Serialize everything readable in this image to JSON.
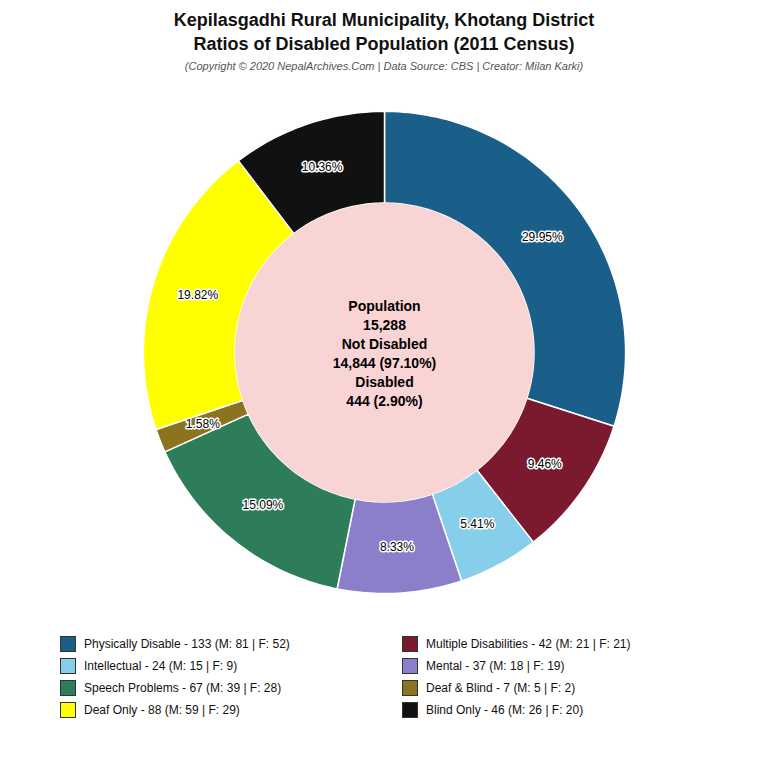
{
  "chart_data": {
    "type": "donut",
    "title": [
      "Kepilasgadhi Rural Municipality, Khotang District",
      "Ratios of Disabled Population (2011 Census)"
    ],
    "subtitle": "(Copyright © 2020 NepalArchives.Com | Data Source: CBS | Creator: Milan Karki)",
    "categories": [
      "Physically Disable - 133 (M: 81 | F: 52)",
      "Multiple Disabilities - 42 (M: 21 | F: 21)",
      "Intellectual - 24 (M: 15 | F: 9)",
      "Mental - 37 (M: 18 | F: 19)",
      "Speech Problems - 67 (M: 39 | F: 28)",
      "Deaf & Blind - 7 (M: 5 | F: 2)",
      "Deaf Only - 88 (M: 59 | F: 29)",
      "Blind Only - 46 (M: 26 | F: 20)"
    ],
    "values": [
      29.95,
      9.46,
      5.41,
      8.33,
      15.09,
      1.58,
      19.82,
      10.36
    ],
    "value_labels": [
      "29.95%",
      "9.46%",
      "5.41%",
      "8.33%",
      "15.09%",
      "1.58%",
      "19.82%",
      "10.36%"
    ],
    "colors": [
      "#1a5f8a",
      "#7b1a2e",
      "#87ceeb",
      "#8b7fcc",
      "#2e7d5a",
      "#8b7320",
      "#ffff00",
      "#111111"
    ],
    "data_labels": true,
    "legend": "bottom",
    "annotations": [
      "Population",
      "15,288",
      "Not Disabled",
      "14,844 (97.10%)",
      "Disabled",
      "444 (2.90%)"
    ]
  }
}
